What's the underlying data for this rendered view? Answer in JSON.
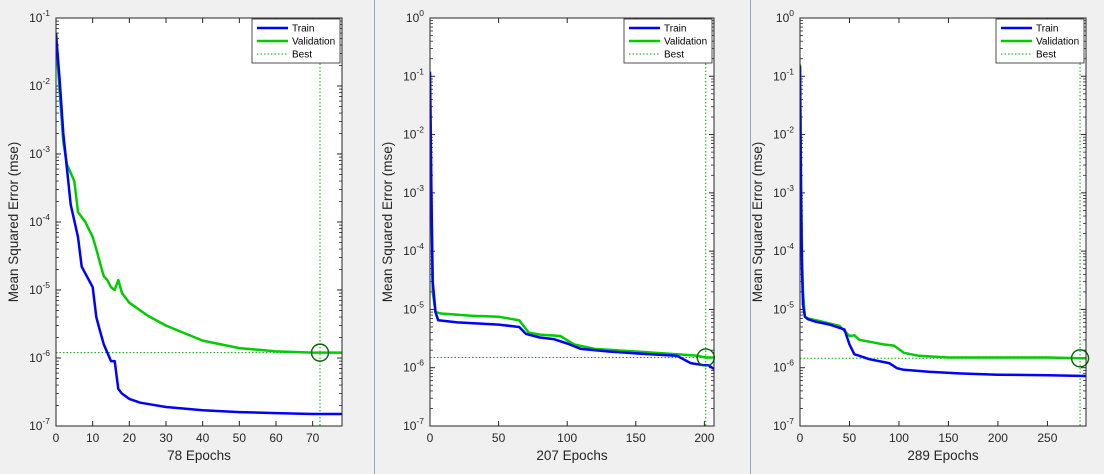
{
  "colors": {
    "background": "#ffffff",
    "plot_background": "#ffffff",
    "outer_panel": "#f0f0f0",
    "separator": "#9aa4b2",
    "train": "#0000ff",
    "validation": "#00cc00",
    "best": "#00aa00",
    "axis": "#262626"
  },
  "legend_labels": {
    "train": "Train",
    "validation": "Validation",
    "best": "Best"
  },
  "chart_data": [
    {
      "type": "line",
      "ylabel": "Mean Squared Error  (mse)",
      "xlabel": "78 Epochs",
      "yscale": "log",
      "ylim": [
        1e-07,
        0.1
      ],
      "yticks": [
        -7,
        -6,
        -5,
        -4,
        -3,
        -2,
        -1
      ],
      "xlim": [
        0,
        78
      ],
      "xticks": [
        0,
        10,
        20,
        30,
        40,
        50,
        60,
        70
      ],
      "legend": "top-right",
      "best": {
        "epoch": 72,
        "value": 1.2e-06
      },
      "series": [
        {
          "name": "Train",
          "color_key": "train",
          "points": [
            [
              0,
              0.06
            ],
            [
              1,
              0.012
            ],
            [
              2,
              0.002
            ],
            [
              3,
              0.0006
            ],
            [
              4,
              0.00018
            ],
            [
              6,
              6e-05
            ],
            [
              7,
              2.2e-05
            ],
            [
              10,
              1.1e-05
            ],
            [
              11,
              4e-06
            ],
            [
              12,
              2.5e-06
            ],
            [
              13,
              1.6e-06
            ],
            [
              15,
              9e-07
            ],
            [
              16,
              9e-07
            ],
            [
              17,
              3.5e-07
            ],
            [
              18,
              3e-07
            ],
            [
              20,
              2.5e-07
            ],
            [
              23,
              2.2e-07
            ],
            [
              30,
              1.9e-07
            ],
            [
              40,
              1.7e-07
            ],
            [
              50,
              1.6e-07
            ],
            [
              60,
              1.55e-07
            ],
            [
              70,
              1.5e-07
            ],
            [
              78,
              1.5e-07
            ]
          ]
        },
        {
          "name": "Validation",
          "color_key": "validation",
          "points": [
            [
              0,
              0.05
            ],
            [
              1,
              0.008
            ],
            [
              2,
              0.0015
            ],
            [
              3,
              0.0007
            ],
            [
              5,
              0.0004
            ],
            [
              6,
              0.00014
            ],
            [
              8,
              0.0001
            ],
            [
              10,
              6e-05
            ],
            [
              11,
              4e-05
            ],
            [
              12,
              2.5e-05
            ],
            [
              13,
              1.6e-05
            ],
            [
              14,
              1.4e-05
            ],
            [
              15,
              1.1e-05
            ],
            [
              16,
              1e-05
            ],
            [
              17,
              1.4e-05
            ],
            [
              18,
              9e-06
            ],
            [
              20,
              6.5e-06
            ],
            [
              25,
              4.2e-06
            ],
            [
              30,
              3e-06
            ],
            [
              40,
              1.8e-06
            ],
            [
              50,
              1.4e-06
            ],
            [
              60,
              1.25e-06
            ],
            [
              70,
              1.2e-06
            ],
            [
              78,
              1.2e-06
            ]
          ]
        }
      ]
    },
    {
      "type": "line",
      "ylabel": "Mean Squared Error  (mse)",
      "xlabel": "207 Epochs",
      "yscale": "log",
      "ylim": [
        1e-07,
        1
      ],
      "yticks": [
        -7,
        -6,
        -5,
        -4,
        -3,
        -2,
        -1,
        0
      ],
      "xlim": [
        0,
        207
      ],
      "xticks": [
        0,
        50,
        100,
        150,
        200
      ],
      "legend": "top-right",
      "best": {
        "epoch": 201,
        "value": 1.5e-06
      },
      "series": [
        {
          "name": "Train",
          "color_key": "train",
          "points": [
            [
              0,
              0.12
            ],
            [
              1,
              0.001
            ],
            [
              2,
              3e-05
            ],
            [
              4,
              9e-06
            ],
            [
              6,
              6.5e-06
            ],
            [
              20,
              6e-06
            ],
            [
              50,
              5.5e-06
            ],
            [
              65,
              5e-06
            ],
            [
              70,
              3.8e-06
            ],
            [
              80,
              3.3e-06
            ],
            [
              90,
              3.1e-06
            ],
            [
              100,
              2.6e-06
            ],
            [
              110,
              2.1e-06
            ],
            [
              130,
              1.9e-06
            ],
            [
              160,
              1.7e-06
            ],
            [
              180,
              1.6e-06
            ],
            [
              190,
              1.2e-06
            ],
            [
              200,
              1.1e-06
            ],
            [
              203,
              1.1e-06
            ],
            [
              207,
              9.5e-07
            ]
          ]
        },
        {
          "name": "Validation",
          "color_key": "validation",
          "points": [
            [
              0,
              0.11
            ],
            [
              1,
              0.0008
            ],
            [
              2,
              2e-05
            ],
            [
              4,
              9e-06
            ],
            [
              8,
              8.5e-06
            ],
            [
              30,
              7.8e-06
            ],
            [
              50,
              7.5e-06
            ],
            [
              65,
              6.5e-06
            ],
            [
              72,
              4e-06
            ],
            [
              80,
              3.7e-06
            ],
            [
              95,
              3.5e-06
            ],
            [
              105,
              2.5e-06
            ],
            [
              120,
              2.1e-06
            ],
            [
              150,
              1.9e-06
            ],
            [
              180,
              1.7e-06
            ],
            [
              195,
              1.6e-06
            ],
            [
              201,
              1.5e-06
            ],
            [
              207,
              1.5e-06
            ]
          ]
        }
      ]
    },
    {
      "type": "line",
      "ylabel": "Mean Squared Error  (mse)",
      "xlabel": "289 Epochs",
      "yscale": "log",
      "ylim": [
        1e-07,
        1
      ],
      "yticks": [
        -7,
        -6,
        -5,
        -4,
        -3,
        -2,
        -1,
        0
      ],
      "xlim": [
        0,
        289
      ],
      "xticks": [
        0,
        50,
        100,
        150,
        200,
        250
      ],
      "legend": "top-right",
      "best": {
        "epoch": 283,
        "value": 1.45e-06
      },
      "series": [
        {
          "name": "Train",
          "color_key": "train",
          "points": [
            [
              0,
              0.15
            ],
            [
              1,
              0.001
            ],
            [
              2,
              5e-05
            ],
            [
              3,
              1.2e-05
            ],
            [
              5,
              7.5e-06
            ],
            [
              8,
              6.8e-06
            ],
            [
              15,
              6.2e-06
            ],
            [
              30,
              5.5e-06
            ],
            [
              45,
              4.5e-06
            ],
            [
              50,
              2.5e-06
            ],
            [
              55,
              1.7e-06
            ],
            [
              60,
              1.6e-06
            ],
            [
              70,
              1.4e-06
            ],
            [
              90,
              1.2e-06
            ],
            [
              98,
              9.8e-07
            ],
            [
              105,
              9.2e-07
            ],
            [
              130,
              8.5e-07
            ],
            [
              160,
              8e-07
            ],
            [
              200,
              7.6e-07
            ],
            [
              250,
              7.4e-07
            ],
            [
              289,
              7.2e-07
            ]
          ]
        },
        {
          "name": "Validation",
          "color_key": "validation",
          "points": [
            [
              0,
              0.16
            ],
            [
              1,
              0.002
            ],
            [
              2,
              8e-05
            ],
            [
              3,
              2e-05
            ],
            [
              5,
              7.5e-06
            ],
            [
              8,
              7e-06
            ],
            [
              20,
              6.3e-06
            ],
            [
              40,
              5.2e-06
            ],
            [
              50,
              3.5e-06
            ],
            [
              55,
              3.6e-06
            ],
            [
              60,
              3e-06
            ],
            [
              70,
              2.8e-06
            ],
            [
              85,
              2.5e-06
            ],
            [
              95,
              2.4e-06
            ],
            [
              105,
              1.8e-06
            ],
            [
              120,
              1.6e-06
            ],
            [
              150,
              1.5e-06
            ],
            [
              200,
              1.5e-06
            ],
            [
              250,
              1.5e-06
            ],
            [
              283,
              1.45e-06
            ],
            [
              289,
              1.45e-06
            ]
          ]
        }
      ]
    }
  ]
}
